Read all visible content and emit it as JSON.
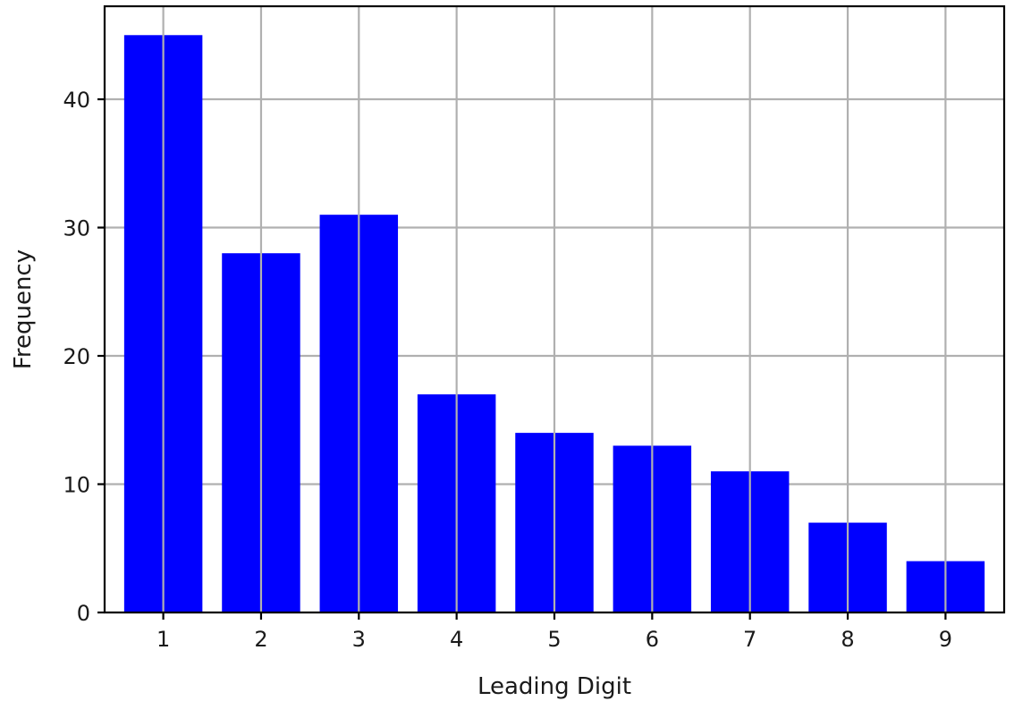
{
  "chart_data": {
    "type": "bar",
    "title": "",
    "xlabel": "Leading Digit",
    "ylabel": "Frequency",
    "categories": [
      "1",
      "2",
      "3",
      "4",
      "5",
      "6",
      "7",
      "8",
      "9"
    ],
    "values": [
      45,
      28,
      31,
      17,
      14,
      13,
      11,
      7,
      4
    ],
    "ylim": [
      0,
      47.25
    ],
    "yticks": [
      0,
      10,
      20,
      30,
      40
    ],
    "ytick_labels": [
      "0",
      "10",
      "20",
      "30",
      "40"
    ],
    "grid": true,
    "bar_color": "#0000ff",
    "grid_color": "#b0b0b0"
  }
}
